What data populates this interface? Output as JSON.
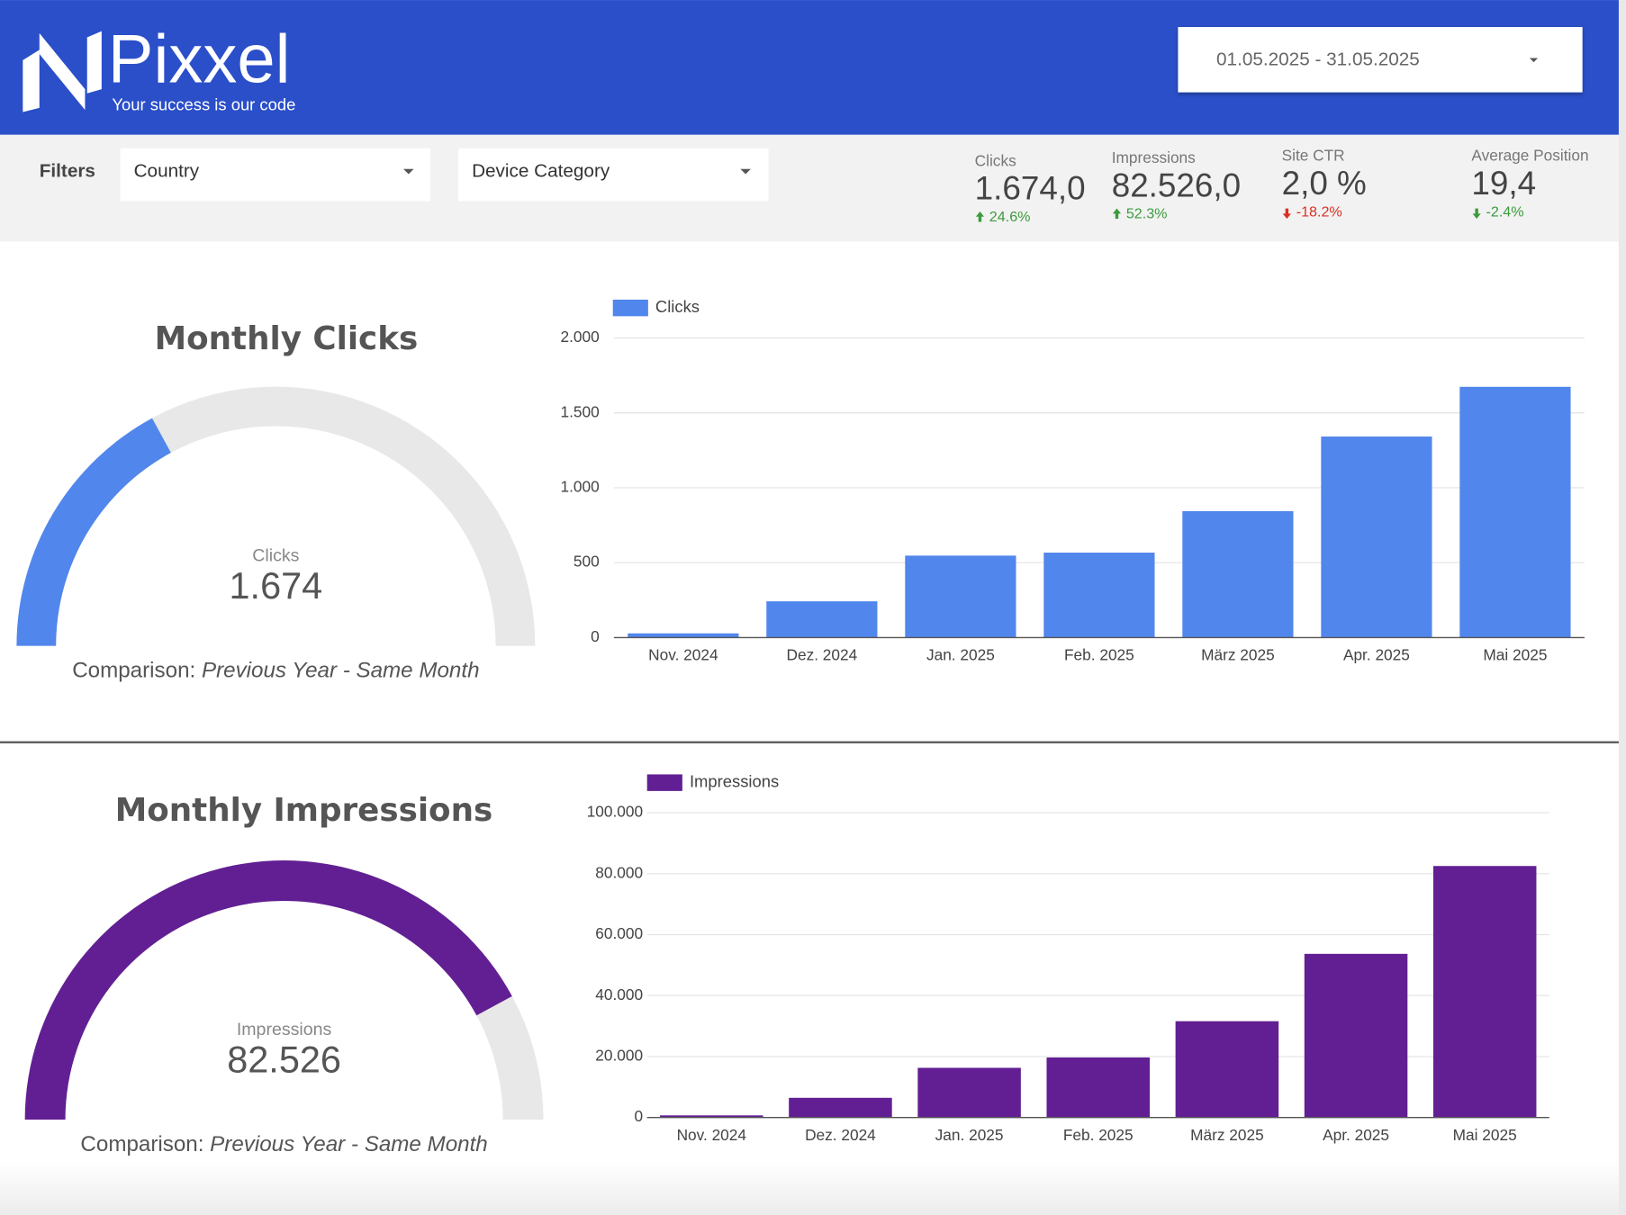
{
  "header": {
    "logo": "Pixxel",
    "tagline": "Your success is our code",
    "date_range": "01.05.2025 - 31.05.2025"
  },
  "filters": {
    "label": "Filters",
    "items": [
      "Country",
      "Device Category"
    ]
  },
  "kpis": [
    {
      "label": "Clicks",
      "value": "1.674,0",
      "change": "24.6%",
      "direction": "up",
      "color": "#3c9a3c"
    },
    {
      "label": "Impressions",
      "value": "82.526,0",
      "change": "52.3%",
      "direction": "up",
      "color": "#3c9a3c"
    },
    {
      "label": "Site CTR",
      "value": "2,0 %",
      "change": "-18.2%",
      "direction": "down",
      "color": "#d93025"
    },
    {
      "label": "Average Position",
      "value": "19,4",
      "change": "-2.4%",
      "direction": "down",
      "color": "#3c9a3c"
    }
  ],
  "chart_data": [
    {
      "type": "gauge",
      "title": "Monthly Clicks",
      "label": "Clicks",
      "value": 1674,
      "value_label": "1.674",
      "ylim": [
        0,
        4900
      ],
      "color": "#5186ec",
      "track_color": "#e8e8e8",
      "comparison_label": "Comparison:",
      "comparison": "Previous Year - Same Month"
    },
    {
      "type": "bar",
      "categories": [
        "Nov. 2024",
        "Dez. 2024",
        "Jan. 2025",
        "Feb. 2025",
        "März 2025",
        "Apr. 2025",
        "Mai 2025"
      ],
      "series": [
        {
          "name": "Clicks",
          "color": "#5186ec",
          "values": [
            28,
            242,
            547,
            567,
            844,
            1342,
            1674
          ]
        }
      ],
      "ylim": [
        0,
        2000
      ],
      "yticks": [
        0,
        500,
        {
          "value": 1000,
          "label": "1.000"
        },
        {
          "value": 1500,
          "label": "1.500"
        },
        {
          "value": 2000,
          "label": "2.000"
        }
      ],
      "grid": true,
      "legend": "top-left"
    },
    {
      "type": "gauge",
      "title": "Monthly Impressions",
      "label": "Impressions",
      "value": 82526,
      "value_label": "82.526",
      "ylim": [
        0,
        98000
      ],
      "color": "#621f93",
      "track_color": "#e8e8e8",
      "comparison_label": "Comparison:",
      "comparison": "Previous Year - Same Month"
    },
    {
      "type": "bar",
      "categories": [
        "Nov. 2024",
        "Dez. 2024",
        "Jan. 2025",
        "Feb. 2025",
        "März 2025",
        "Apr. 2025",
        "Mai 2025"
      ],
      "series": [
        {
          "name": "Impressions",
          "color": "#621f93",
          "values": [
            700,
            6460,
            16300,
            19700,
            31600,
            53700,
            82526
          ]
        }
      ],
      "ylim": [
        0,
        100000
      ],
      "yticks": [
        0,
        {
          "value": 20000,
          "label": "20.000"
        },
        {
          "value": 40000,
          "label": "40.000"
        },
        {
          "value": 60000,
          "label": "60.000"
        },
        {
          "value": 80000,
          "label": "80.000"
        },
        {
          "value": 100000,
          "label": "100.000"
        }
      ],
      "grid": true,
      "legend": "top-left"
    }
  ]
}
